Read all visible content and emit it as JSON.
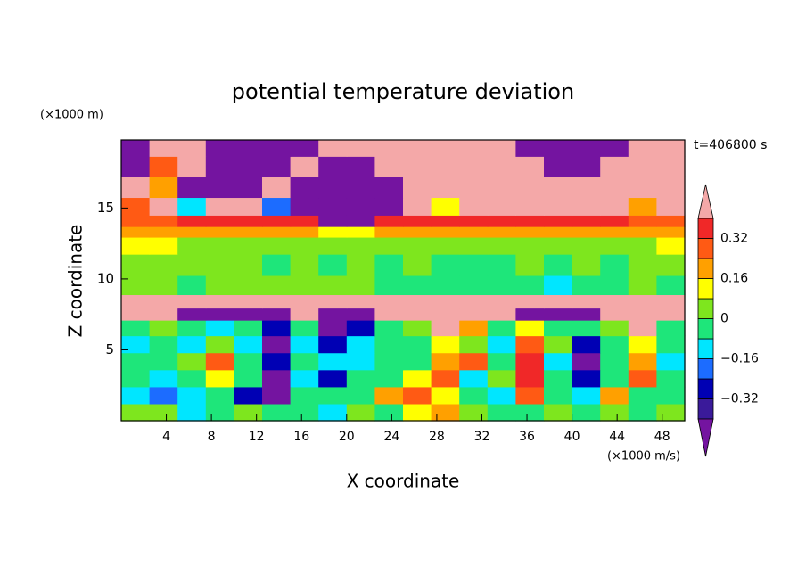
{
  "chart_data": {
    "type": "contour",
    "title": "potential temperature deviation",
    "x_label": "X coordinate",
    "y_label": "Z coordinate",
    "x_units": "(×1000 m/s)",
    "y_units": "(×1000 m)",
    "annotation": "t=406800 s",
    "xlim": [
      0,
      50
    ],
    "ylim": [
      0,
      19.8
    ],
    "xticks": [
      4,
      8,
      12,
      16,
      20,
      24,
      28,
      32,
      36,
      40,
      44,
      48
    ],
    "yticks": [
      5,
      10,
      15
    ],
    "levels": [
      -0.4,
      -0.32,
      -0.24,
      -0.16,
      -0.08,
      0,
      0.08,
      0.16,
      0.24,
      0.32,
      0.4
    ],
    "colors": [
      "#3a1a9a",
      "#0000b4",
      "#1c6cff",
      "#00e6ff",
      "#1ee67a",
      "#7ee61e",
      "#ffff00",
      "#ffa000",
      "#ff5a14",
      "#f02828"
    ],
    "over_color": "#f4a8a8",
    "under_color": "#7414a0",
    "colorbar_ticks": [
      {
        "value": -0.32,
        "label": "−0.32"
      },
      {
        "value": -0.16,
        "label": "−0.16"
      },
      0,
      0.16,
      0.32
    ],
    "x": [
      1.25,
      3.75,
      6.25,
      8.75,
      11.25,
      13.75,
      16.25,
      18.75,
      21.25,
      23.75,
      26.25,
      28.75,
      31.25,
      33.75,
      36.25,
      38.75,
      41.25,
      43.75,
      46.25,
      48.75
    ],
    "y": [
      0.6,
      1.8,
      3.0,
      4.2,
      5.4,
      6.6,
      7.6,
      8.3,
      9.5,
      11,
      12.5,
      13.4,
      14,
      15,
      16.5,
      18,
      19.3
    ],
    "z": [
      [
        0.04,
        0.04,
        -0.12,
        -0.04,
        0.04,
        -0.04,
        -0.04,
        -0.12,
        0.04,
        -0.04,
        0.12,
        0.2,
        0.04,
        -0.04,
        -0.04,
        0.04,
        -0.04,
        0.04,
        -0.04,
        0.04
      ],
      [
        -0.12,
        -0.2,
        -0.12,
        -0.04,
        -0.28,
        -0.5,
        -0.04,
        -0.04,
        -0.04,
        0.2,
        0.28,
        0.12,
        -0.04,
        -0.12,
        0.28,
        -0.04,
        -0.12,
        0.2,
        -0.04,
        -0.04
      ],
      [
        -0.04,
        -0.12,
        -0.04,
        0.12,
        -0.04,
        -0.5,
        -0.12,
        -0.28,
        -0.04,
        -0.04,
        0.12,
        0.28,
        -0.12,
        0.04,
        0.36,
        -0.04,
        -0.28,
        -0.04,
        0.28,
        -0.04
      ],
      [
        -0.04,
        -0.04,
        0.04,
        0.28,
        -0.04,
        -0.28,
        -0.04,
        -0.12,
        -0.12,
        -0.04,
        -0.04,
        0.2,
        0.28,
        -0.04,
        0.36,
        -0.12,
        -0.5,
        -0.04,
        0.2,
        -0.12
      ],
      [
        -0.12,
        -0.04,
        -0.12,
        0.04,
        -0.12,
        -0.5,
        -0.12,
        -0.28,
        -0.12,
        -0.04,
        -0.04,
        0.12,
        0.04,
        -0.12,
        0.28,
        0.04,
        -0.28,
        -0.04,
        0.12,
        -0.04
      ],
      [
        -0.04,
        0.04,
        -0.04,
        -0.12,
        -0.04,
        -0.28,
        -0.04,
        -0.5,
        -0.28,
        -0.04,
        0.04,
        0.5,
        0.2,
        -0.04,
        0.12,
        -0.04,
        -0.04,
        0.04,
        0.5,
        -0.04
      ],
      [
        0.5,
        0.5,
        -0.5,
        -0.5,
        -0.5,
        -0.5,
        0.5,
        -0.5,
        -0.5,
        0.5,
        0.5,
        0.5,
        0.5,
        0.5,
        -0.5,
        -0.5,
        -0.5,
        0.5,
        0.5,
        0.5
      ],
      [
        0.5,
        0.5,
        0.5,
        0.5,
        0.5,
        0.5,
        0.5,
        0.5,
        0.5,
        0.5,
        0.5,
        0.5,
        0.5,
        0.5,
        0.5,
        0.5,
        0.5,
        0.5,
        0.5,
        0.5
      ],
      [
        0.04,
        0.04,
        -0.04,
        0.04,
        0.04,
        0.04,
        0.04,
        0.04,
        0.04,
        -0.04,
        -0.04,
        -0.04,
        -0.04,
        -0.04,
        -0.04,
        -0.12,
        -0.04,
        -0.04,
        0.04,
        -0.04
      ],
      [
        0.04,
        0.04,
        0.04,
        0.04,
        0.04,
        -0.04,
        0.04,
        -0.04,
        0.04,
        -0.04,
        0.04,
        -0.04,
        -0.04,
        -0.04,
        0.04,
        -0.04,
        0.04,
        -0.04,
        0.04,
        0.04
      ],
      [
        0.12,
        0.12,
        0.04,
        0.04,
        0.04,
        0.04,
        0.04,
        0.04,
        0.04,
        0.04,
        0.04,
        0.04,
        0.04,
        0.04,
        0.04,
        0.04,
        0.04,
        0.04,
        0.04,
        0.12
      ],
      [
        0.2,
        0.2,
        0.2,
        0.2,
        0.2,
        0.2,
        0.2,
        0.12,
        0.12,
        0.2,
        0.2,
        0.2,
        0.2,
        0.2,
        0.2,
        0.2,
        0.2,
        0.2,
        0.2,
        0.2
      ],
      [
        0.3,
        0.3,
        0.36,
        0.36,
        0.36,
        0.36,
        0.36,
        -0.5,
        -0.5,
        0.36,
        0.36,
        0.36,
        0.36,
        0.36,
        0.36,
        0.36,
        0.36,
        0.36,
        0.3,
        0.3
      ],
      [
        0.3,
        0.5,
        -0.1,
        0.5,
        0.5,
        -0.2,
        -0.5,
        -0.5,
        -0.5,
        -0.5,
        0.5,
        0.1,
        0.5,
        0.5,
        0.5,
        0.5,
        0.5,
        0.5,
        0.2,
        0.5
      ],
      [
        0.5,
        0.2,
        -0.5,
        -0.5,
        -0.5,
        0.5,
        -0.5,
        -0.5,
        -0.5,
        -0.5,
        0.5,
        0.5,
        0.5,
        0.5,
        0.5,
        0.5,
        0.5,
        0.5,
        0.5,
        0.5
      ],
      [
        -0.5,
        0.3,
        0.5,
        -0.5,
        -0.5,
        -0.5,
        0.5,
        -0.5,
        -0.5,
        0.5,
        0.5,
        0.5,
        0.5,
        0.5,
        0.5,
        -0.5,
        -0.5,
        0.5,
        0.5,
        0.5
      ],
      [
        -0.5,
        0.5,
        0.5,
        -0.5,
        -0.5,
        -0.5,
        -0.5,
        0.5,
        0.5,
        0.5,
        0.5,
        0.5,
        0.5,
        0.5,
        -0.5,
        -0.5,
        -0.5,
        -0.5,
        0.5,
        0.5
      ]
    ]
  }
}
